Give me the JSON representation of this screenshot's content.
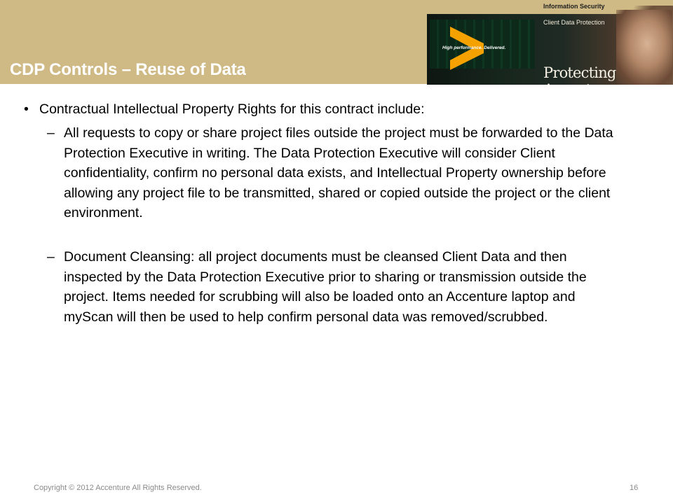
{
  "header": {
    "title": "CDP Controls – Reuse of Data",
    "banner_top_label": "Information Security",
    "banner_sub_label": "Client Data Protection",
    "banner_tagline": "High performance. Delivered.",
    "banner_big": "Protecting Accenture"
  },
  "content": {
    "bullet": "Contractual Intellectual Property Rights for this contract include:",
    "bullet_mark": "•",
    "dash_mark": "–",
    "sub_items": [
      "All requests to copy or share project files outside the project must be forwarded to the Data Protection Executive in writing.  The Data Protection Executive will consider Client confidentiality, confirm no personal data exists, and Intellectual Property ownership before allowing any project file to be transmitted, shared or copied outside the project or the client environment.",
      "Document Cleansing: all project documents must be cleansed Client Data and then inspected by the Data Protection Executive prior to sharing or transmission outside the project. Items needed for scrubbing will also be loaded onto an Accenture laptop and myScan will then be used to help confirm personal data was removed/scrubbed."
    ]
  },
  "footer": {
    "copyright": "Copyright © 2012 Accenture  All Rights Reserved.",
    "page_number": "16"
  },
  "colors": {
    "header_band": "#cfba86",
    "accent_chevron": "#f5a200"
  },
  "icons": {
    "banner_logo": "accenture-chevron-icon"
  }
}
